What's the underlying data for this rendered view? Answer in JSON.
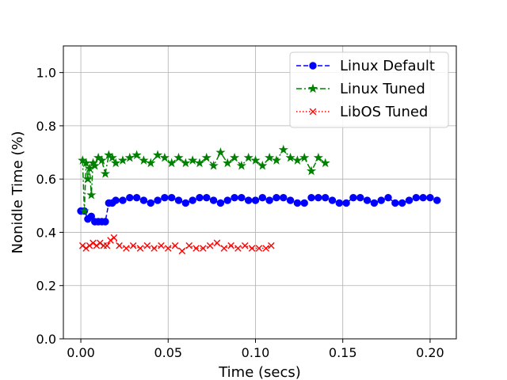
{
  "chart_data": {
    "type": "line",
    "title": "",
    "xlabel": "Time (secs)",
    "ylabel": "Nonidle Time (%)",
    "xlim": [
      -0.01,
      0.215
    ],
    "ylim": [
      0.0,
      1.1
    ],
    "xticks": [
      0.0,
      0.05,
      0.1,
      0.15,
      0.2
    ],
    "xtick_labels": [
      "0.00",
      "0.05",
      "0.10",
      "0.15",
      "0.20"
    ],
    "yticks": [
      0.0,
      0.2,
      0.4,
      0.6,
      0.8,
      1.0
    ],
    "ytick_labels": [
      "0.0",
      "0.2",
      "0.4",
      "0.6",
      "0.8",
      "1.0"
    ],
    "grid": true,
    "legend_position": "top-right",
    "series": [
      {
        "name": "Linux Default",
        "color": "#0000ff",
        "linestyle": "dashed",
        "marker": "circle",
        "x": [
          0.0,
          0.002,
          0.004,
          0.006,
          0.008,
          0.01,
          0.012,
          0.014,
          0.016,
          0.018,
          0.02,
          0.024,
          0.028,
          0.032,
          0.036,
          0.04,
          0.044,
          0.048,
          0.052,
          0.056,
          0.06,
          0.064,
          0.068,
          0.072,
          0.076,
          0.08,
          0.084,
          0.088,
          0.092,
          0.096,
          0.1,
          0.104,
          0.108,
          0.112,
          0.116,
          0.12,
          0.124,
          0.128,
          0.132,
          0.136,
          0.14,
          0.144,
          0.148,
          0.152,
          0.156,
          0.16,
          0.164,
          0.168,
          0.172,
          0.176,
          0.18,
          0.184,
          0.188,
          0.192,
          0.196,
          0.2,
          0.204
        ],
        "y": [
          0.48,
          0.48,
          0.45,
          0.46,
          0.44,
          0.44,
          0.44,
          0.44,
          0.51,
          0.51,
          0.52,
          0.52,
          0.53,
          0.53,
          0.52,
          0.51,
          0.52,
          0.53,
          0.53,
          0.52,
          0.51,
          0.52,
          0.53,
          0.53,
          0.52,
          0.51,
          0.52,
          0.53,
          0.53,
          0.52,
          0.52,
          0.53,
          0.52,
          0.53,
          0.53,
          0.52,
          0.51,
          0.51,
          0.53,
          0.53,
          0.53,
          0.52,
          0.51,
          0.51,
          0.53,
          0.53,
          0.52,
          0.51,
          0.52,
          0.53,
          0.51,
          0.51,
          0.52,
          0.53,
          0.53,
          0.53,
          0.52
        ]
      },
      {
        "name": "Linux Tuned",
        "color": "#008000",
        "linestyle": "dashdot",
        "marker": "star",
        "x": [
          0.001,
          0.002,
          0.003,
          0.004,
          0.005,
          0.006,
          0.007,
          0.008,
          0.01,
          0.012,
          0.014,
          0.016,
          0.018,
          0.02,
          0.024,
          0.028,
          0.032,
          0.036,
          0.04,
          0.044,
          0.048,
          0.052,
          0.056,
          0.06,
          0.064,
          0.068,
          0.072,
          0.076,
          0.08,
          0.084,
          0.088,
          0.092,
          0.096,
          0.1,
          0.104,
          0.108,
          0.112,
          0.116,
          0.12,
          0.124,
          0.128,
          0.132,
          0.136,
          0.14
        ],
        "y": [
          0.67,
          0.48,
          0.66,
          0.6,
          0.64,
          0.54,
          0.66,
          0.65,
          0.68,
          0.67,
          0.62,
          0.69,
          0.68,
          0.66,
          0.67,
          0.68,
          0.69,
          0.67,
          0.66,
          0.69,
          0.68,
          0.66,
          0.68,
          0.66,
          0.67,
          0.66,
          0.68,
          0.65,
          0.7,
          0.66,
          0.68,
          0.65,
          0.68,
          0.67,
          0.65,
          0.68,
          0.67,
          0.71,
          0.68,
          0.67,
          0.68,
          0.63,
          0.68,
          0.66
        ]
      },
      {
        "name": "LibOS Tuned",
        "color": "#ff0000",
        "linestyle": "dotted",
        "marker": "x",
        "x": [
          0.001,
          0.003,
          0.005,
          0.007,
          0.009,
          0.011,
          0.013,
          0.015,
          0.017,
          0.019,
          0.022,
          0.026,
          0.03,
          0.034,
          0.038,
          0.042,
          0.046,
          0.05,
          0.054,
          0.058,
          0.062,
          0.066,
          0.07,
          0.074,
          0.078,
          0.082,
          0.086,
          0.09,
          0.094,
          0.098,
          0.102,
          0.106,
          0.109
        ],
        "y": [
          0.35,
          0.34,
          0.35,
          0.36,
          0.35,
          0.36,
          0.35,
          0.35,
          0.37,
          0.38,
          0.35,
          0.34,
          0.35,
          0.34,
          0.35,
          0.34,
          0.35,
          0.34,
          0.35,
          0.33,
          0.35,
          0.34,
          0.34,
          0.35,
          0.36,
          0.34,
          0.35,
          0.34,
          0.35,
          0.34,
          0.34,
          0.34,
          0.35
        ]
      }
    ]
  }
}
